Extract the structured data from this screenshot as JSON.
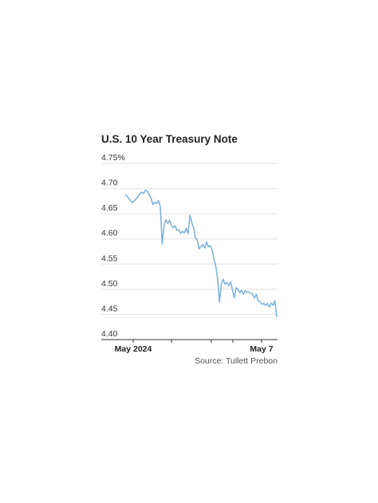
{
  "chart_data": {
    "type": "line",
    "title": "U.S. 10 Year Treasury Note",
    "source": "Source: Tullett Prebon",
    "ylim": [
      4.4,
      4.75
    ],
    "y_ticks": [
      4.4,
      4.45,
      4.5,
      4.55,
      4.6,
      4.65,
      4.7,
      4.75
    ],
    "y_tick_labels": [
      "4.40",
      "4.45",
      "4.50",
      "4.55",
      "4.60",
      "4.65",
      "4.70",
      "4.75%"
    ],
    "x_labels": [
      "May 2024",
      "May 7"
    ],
    "grid": true,
    "color": "#7fb3dc",
    "series": [
      {
        "values": [
          4.688,
          4.685,
          4.68,
          4.675,
          4.672,
          4.676,
          4.68,
          4.684,
          4.69,
          4.693,
          4.69,
          4.697,
          4.695,
          4.688,
          4.681,
          4.668,
          4.673,
          4.67,
          4.676,
          4.664,
          4.59,
          4.627,
          4.638,
          4.631,
          4.637,
          4.627,
          4.622,
          4.626,
          4.617,
          4.618,
          4.611,
          4.615,
          4.612,
          4.621,
          4.61,
          4.647,
          4.633,
          4.622,
          4.602,
          4.598,
          4.58,
          4.585,
          4.589,
          4.582,
          4.594,
          4.584,
          4.587,
          4.578,
          4.56,
          4.546,
          4.522,
          4.475,
          4.51,
          4.52,
          4.51,
          4.513,
          4.507,
          4.515,
          4.5,
          4.483,
          4.503,
          4.5,
          4.493,
          4.498,
          4.49,
          4.497,
          4.494,
          4.495,
          4.492,
          4.49,
          4.483,
          4.49,
          4.477,
          4.475,
          4.47,
          4.472,
          4.468,
          4.472,
          4.465,
          4.473,
          4.468,
          4.477,
          4.445
        ]
      }
    ]
  }
}
